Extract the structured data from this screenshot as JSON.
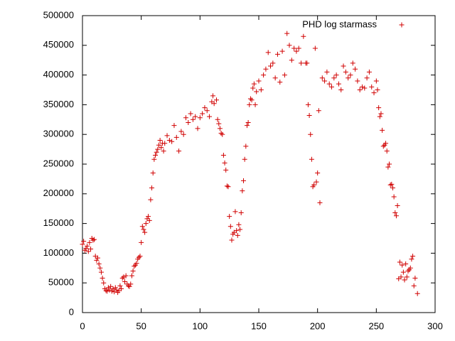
{
  "chart_data": {
    "type": "scatter",
    "x": [
      0,
      1,
      2,
      3,
      4,
      5,
      6,
      7,
      8,
      9,
      10,
      11,
      12,
      13,
      14,
      15,
      16,
      17,
      18,
      19,
      20,
      21,
      22,
      23,
      24,
      25,
      26,
      27,
      28,
      29,
      30,
      31,
      32,
      33,
      34,
      35,
      36,
      37,
      38,
      39,
      40,
      41,
      42,
      43,
      44,
      45,
      46,
      47,
      48,
      49,
      50,
      51,
      52,
      53,
      54,
      55,
      56,
      57,
      58,
      59,
      60,
      61,
      62,
      63,
      64,
      65,
      66,
      67,
      68,
      69,
      70,
      72,
      74,
      76,
      78,
      80,
      82,
      84,
      86,
      88,
      90,
      92,
      94,
      96,
      98,
      100,
      102,
      104,
      106,
      108,
      110,
      111,
      112,
      114,
      115,
      116,
      117,
      118,
      119,
      120,
      121,
      122,
      123,
      124,
      125,
      126,
      127,
      128,
      129,
      130,
      131,
      132,
      133,
      134,
      135,
      136,
      137,
      138,
      139,
      140,
      141,
      142,
      143,
      144,
      145,
      146,
      147,
      148,
      150,
      152,
      154,
      156,
      158,
      160,
      162,
      164,
      166,
      168,
      170,
      172,
      174,
      176,
      178,
      180,
      182,
      184,
      186,
      188,
      190,
      191,
      192,
      193,
      194,
      195,
      196,
      197,
      198,
      199,
      200,
      201,
      202,
      204,
      206,
      208,
      210,
      212,
      214,
      216,
      218,
      220,
      222,
      224,
      226,
      228,
      230,
      232,
      234,
      236,
      238,
      240,
      242,
      244,
      246,
      248,
      250,
      251,
      252,
      253,
      254,
      255,
      256,
      257,
      258,
      259,
      260,
      261,
      262,
      263,
      264,
      265,
      266,
      267,
      268,
      269,
      270,
      271,
      272,
      273,
      274,
      275,
      276,
      277,
      278,
      279,
      280,
      281,
      282,
      283,
      285
    ],
    "series": [
      {
        "name": "PHD log starmass",
        "color": "#d00000",
        "marker": "plus",
        "values": [
          115000,
          120000,
          105000,
          108000,
          112000,
          103000,
          118000,
          107000,
          125000,
          122000,
          123000,
          95000,
          88000,
          92000,
          82000,
          75000,
          68000,
          58000,
          50000,
          40000,
          37000,
          36000,
          42000,
          38000,
          44000,
          36000,
          40000,
          35000,
          42000,
          38000,
          34000,
          37000,
          45000,
          40000,
          58000,
          60000,
          52000,
          62000,
          48000,
          45000,
          44000,
          48000,
          62000,
          70000,
          78000,
          80000,
          83000,
          90000,
          93000,
          95000,
          118000,
          145000,
          140000,
          135000,
          150000,
          158000,
          162000,
          155000,
          190000,
          210000,
          235000,
          258000,
          265000,
          270000,
          275000,
          282000,
          290000,
          278000,
          285000,
          272000,
          285000,
          298000,
          290000,
          288000,
          315000,
          295000,
          272000,
          305000,
          300000,
          328000,
          320000,
          335000,
          325000,
          330000,
          310000,
          328000,
          335000,
          345000,
          340000,
          330000,
          355000,
          365000,
          352000,
          358000,
          325000,
          318000,
          310000,
          302000,
          300000,
          265000,
          252000,
          240000,
          213000,
          212000,
          162000,
          145000,
          122000,
          132000,
          135000,
          170000,
          138000,
          130000,
          148000,
          140000,
          168000,
          205000,
          222000,
          258000,
          280000,
          315000,
          320000,
          350000,
          360000,
          358000,
          378000,
          385000,
          350000,
          372000,
          390000,
          375000,
          400000,
          410000,
          438000,
          415000,
          420000,
          395000,
          435000,
          388000,
          440000,
          400000,
          470000,
          450000,
          425000,
          445000,
          440000,
          445000,
          420000,
          465000,
          420000,
          420000,
          350000,
          332000,
          300000,
          258000,
          212000,
          215000,
          445000,
          220000,
          235000,
          340000,
          185000,
          395000,
          390000,
          405000,
          385000,
          380000,
          395000,
          400000,
          385000,
          375000,
          415000,
          405000,
          395000,
          400000,
          420000,
          410000,
          390000,
          375000,
          380000,
          378000,
          395000,
          405000,
          380000,
          370000,
          390000,
          375000,
          345000,
          330000,
          335000,
          307000,
          280000,
          282000,
          285000,
          272000,
          245000,
          250000,
          215000,
          216000,
          210000,
          195000,
          168000,
          163000,
          180000,
          57000,
          85000,
          60000,
          80000,
          68000,
          55000,
          82000,
          60000,
          70000,
          72000,
          75000,
          90000,
          95000,
          45000,
          58000,
          32000
        ]
      }
    ],
    "xlim": [
      0,
      300
    ],
    "ylim": [
      0,
      500000
    ],
    "xticks": [
      0,
      50,
      100,
      150,
      200,
      250,
      300
    ],
    "yticks": [
      0,
      50000,
      100000,
      150000,
      200000,
      250000,
      300000,
      350000,
      400000,
      450000,
      500000
    ],
    "legend": "top-right",
    "grid": false
  }
}
